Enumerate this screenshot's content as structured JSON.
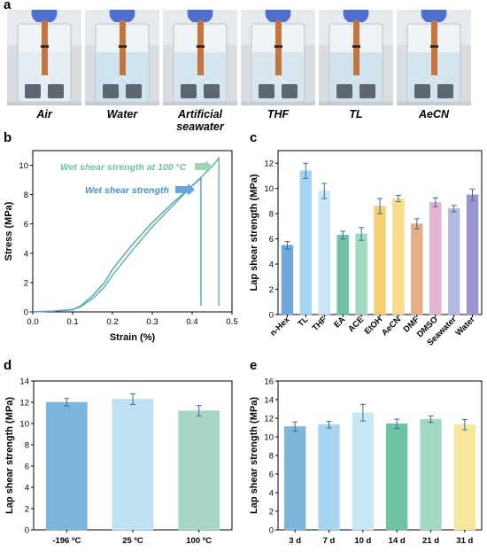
{
  "panel_letters": {
    "a": "a",
    "b": "b",
    "c": "c",
    "d": "d",
    "e": "e"
  },
  "photos": {
    "labels": [
      "Air",
      "Water",
      "Artificial seawater",
      "THF",
      "TL",
      "AeCN"
    ],
    "liquid_colors": [
      "#e4eef2",
      "#cfe3ee",
      "#d3e6ef",
      "#d7e5ec",
      "#d0e2eb",
      "#d2e5ee"
    ]
  },
  "colors": {
    "green_curve": "#5fb38f",
    "blue_curve": "#4b9fcf",
    "green_text": "#6cc39a",
    "blue_text": "#4a8fd0"
  },
  "chart_data": [
    {
      "id": "b",
      "type": "line",
      "xlabel": "Strain (%)",
      "ylabel": "Stress (MPa)",
      "xlim": [
        0,
        0.5
      ],
      "ylim": [
        0,
        11
      ],
      "xticks": [
        "0.0",
        "0.1",
        "0.2",
        "0.3",
        "0.4",
        "0.5"
      ],
      "yticks": [
        "0",
        "2",
        "4",
        "6",
        "8",
        "10"
      ],
      "annotations": [
        "Wet shear strength at 100 °C",
        "Wet shear strength"
      ],
      "series": [
        {
          "x": [
            0,
            0.05,
            0.1,
            0.12,
            0.15,
            0.18,
            0.2,
            0.25,
            0.3,
            0.35,
            0.4,
            0.45,
            0.467,
            0.467
          ],
          "y": [
            0,
            0.05,
            0.15,
            0.35,
            0.9,
            1.7,
            2.5,
            4.2,
            5.8,
            7.2,
            8.6,
            9.9,
            10.5,
            0.4
          ]
        },
        {
          "x": [
            0,
            0.05,
            0.1,
            0.12,
            0.15,
            0.18,
            0.2,
            0.25,
            0.3,
            0.35,
            0.4,
            0.422,
            0.422
          ],
          "y": [
            0,
            0.05,
            0.15,
            0.4,
            1.1,
            2.0,
            2.9,
            4.6,
            6.1,
            7.4,
            8.6,
            9.1,
            0.4
          ]
        }
      ]
    },
    {
      "id": "c",
      "type": "bar",
      "ylabel": "Lap shear strength (MPa)",
      "ylim": [
        0,
        13
      ],
      "yticks": [
        "0",
        "2",
        "4",
        "6",
        "8",
        "10",
        "12"
      ],
      "categories": [
        "n-Hex",
        "TL",
        "THF",
        "EA",
        "ACE",
        "EtOH",
        "AeCN",
        "DMF",
        "DMSO",
        "Seawater",
        "Water"
      ],
      "values": [
        5.5,
        11.4,
        9.8,
        6.3,
        6.4,
        8.6,
        9.2,
        7.2,
        8.9,
        8.4,
        9.5
      ],
      "errors": [
        0.3,
        0.6,
        0.6,
        0.3,
        0.5,
        0.6,
        0.25,
        0.4,
        0.35,
        0.25,
        0.45
      ],
      "colors": [
        "#6fa8d6",
        "#a6d3ef",
        "#c9e6f4",
        "#6fc3a3",
        "#a2d9c0",
        "#f6cf74",
        "#f9db8a",
        "#e6ad86",
        "#e7b3d3",
        "#b5b8df",
        "#9a95cc"
      ]
    },
    {
      "id": "d",
      "type": "bar",
      "ylabel": "Lap shear strength (MPa)",
      "ylim": [
        0,
        14
      ],
      "yticks": [
        "0",
        "2",
        "4",
        "6",
        "8",
        "10",
        "12",
        "14"
      ],
      "categories": [
        "-196 ºC",
        "25 ºC",
        "100 ºC"
      ],
      "values": [
        12.0,
        12.3,
        11.2
      ],
      "errors": [
        0.35,
        0.5,
        0.5
      ],
      "colors": [
        "#7db5dc",
        "#c0e1f2",
        "#a7d6c7"
      ]
    },
    {
      "id": "e",
      "type": "bar",
      "ylabel": "Lap shear strength (MPa)",
      "ylim": [
        0,
        16
      ],
      "yticks": [
        "0",
        "2",
        "4",
        "6",
        "8",
        "10",
        "12",
        "14",
        "16"
      ],
      "categories": [
        "3 d",
        "7 d",
        "10 d",
        "14 d",
        "21 d",
        "31 d"
      ],
      "values": [
        11.1,
        11.3,
        12.6,
        11.4,
        11.9,
        11.3
      ],
      "errors": [
        0.5,
        0.35,
        0.9,
        0.5,
        0.35,
        0.55
      ],
      "colors": [
        "#7db5dc",
        "#a6d3ef",
        "#c9e6f4",
        "#6fc3a3",
        "#a2d9c0",
        "#f6e79a"
      ]
    }
  ]
}
